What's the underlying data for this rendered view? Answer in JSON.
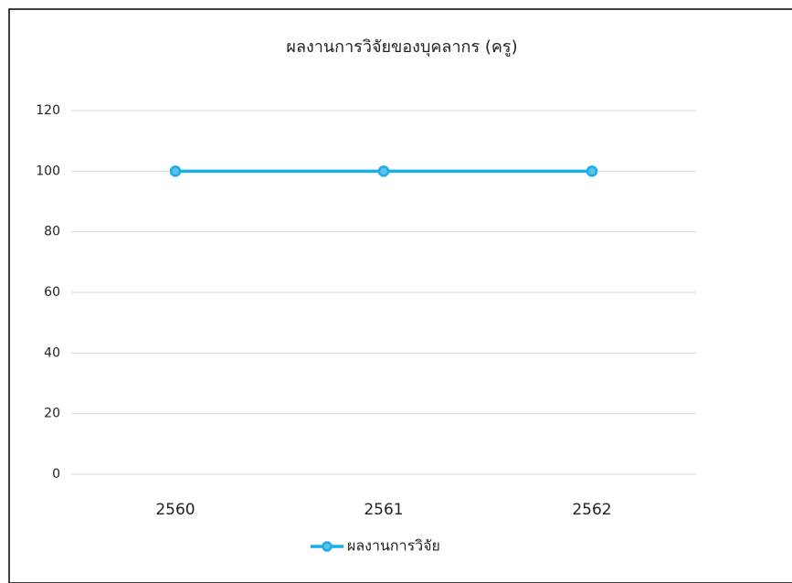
{
  "chart_data": {
    "type": "line",
    "title": "ผลงานการวิจัยของบุคลากร (ครู)",
    "categories": [
      "2560",
      "2561",
      "2562"
    ],
    "series": [
      {
        "name": "ผลงานการวิจัย",
        "color": "#1aaee6",
        "values": [
          100,
          100,
          100
        ]
      }
    ],
    "ylim": [
      0,
      120
    ],
    "yticks": [
      0,
      20,
      40,
      60,
      80,
      100,
      120
    ],
    "grid": true,
    "legend": "bottom"
  }
}
